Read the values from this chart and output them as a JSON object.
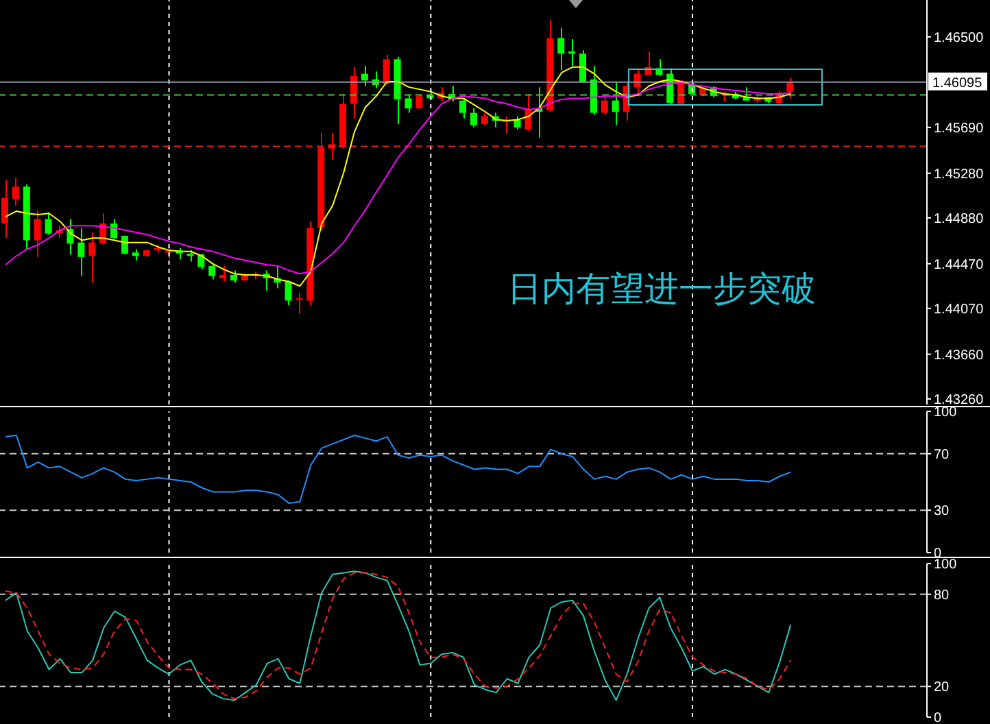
{
  "chart_data": [
    {
      "type": "candlestick",
      "categories": [
        null,
        null,
        null,
        null,
        null,
        null,
        null,
        null,
        null,
        null,
        null,
        null,
        null,
        null,
        null,
        null,
        null,
        null,
        null,
        null,
        null,
        null,
        null,
        null,
        null,
        null,
        null,
        null,
        null,
        null,
        null,
        null,
        null,
        null,
        null,
        null,
        null,
        null,
        null,
        null,
        null,
        null,
        null,
        null,
        null,
        null,
        null,
        null,
        null,
        null,
        null,
        null,
        null,
        null,
        null,
        null,
        null,
        null,
        null,
        null,
        null,
        null,
        null,
        null,
        null,
        null,
        null,
        null,
        null,
        null,
        null,
        null,
        null
      ],
      "ohlc": [
        [
          1.4483,
          1.4522,
          1.447,
          1.4506
        ],
        [
          1.4505,
          1.4524,
          1.4499,
          1.4516
        ],
        [
          1.4516,
          1.4518,
          1.446,
          1.4468
        ],
        [
          1.4468,
          1.4495,
          1.4453,
          1.4487
        ],
        [
          1.4487,
          1.4493,
          1.4473,
          1.4474
        ],
        [
          1.4474,
          1.4481,
          1.447,
          1.4477
        ],
        [
          1.4478,
          1.4487,
          1.4455,
          1.4465
        ],
        [
          1.4466,
          1.4479,
          1.4436,
          1.4453
        ],
        [
          1.4454,
          1.4475,
          1.443,
          1.4466
        ],
        [
          1.4465,
          1.4492,
          1.4464,
          1.4483
        ],
        [
          1.4483,
          1.4487,
          1.4469,
          1.447
        ],
        [
          1.4472,
          1.4472,
          1.4455,
          1.4456
        ],
        [
          1.4457,
          1.446,
          1.445,
          1.4454
        ],
        [
          1.4454,
          1.446,
          1.4453,
          1.4459
        ],
        [
          1.4459,
          1.4464,
          1.4457,
          1.4461
        ],
        [
          1.4457,
          1.4462,
          1.4451,
          1.4459
        ],
        [
          1.4459,
          1.4461,
          1.4451,
          1.4456
        ],
        [
          1.4456,
          1.4459,
          1.4449,
          1.4454
        ],
        [
          1.4455,
          1.4456,
          1.4442,
          1.4444
        ],
        [
          1.4445,
          1.4447,
          1.4433,
          1.4436
        ],
        [
          1.4434,
          1.4445,
          1.4431,
          1.4437
        ],
        [
          1.4437,
          1.4441,
          1.443,
          1.4432
        ],
        [
          1.4432,
          1.4438,
          1.4432,
          1.4437
        ],
        [
          1.4436,
          1.444,
          1.4433,
          1.4438
        ],
        [
          1.4438,
          1.4441,
          1.4423,
          1.4434
        ],
        [
          1.4434,
          1.4445,
          1.4425,
          1.443
        ],
        [
          1.4431,
          1.4432,
          1.441,
          1.4414
        ],
        [
          1.4415,
          1.4421,
          1.4402,
          1.4416
        ],
        [
          1.4414,
          1.4485,
          1.441,
          1.4479
        ],
        [
          1.4479,
          1.4564,
          1.4477,
          1.4551
        ],
        [
          1.455,
          1.4564,
          1.454,
          1.4554
        ],
        [
          1.4551,
          1.4599,
          1.455,
          1.459
        ],
        [
          1.459,
          1.4623,
          1.4577,
          1.4615
        ],
        [
          1.4617,
          1.4624,
          1.4606,
          1.4611
        ],
        [
          1.4612,
          1.4619,
          1.4604,
          1.4607
        ],
        [
          1.4608,
          1.4634,
          1.4607,
          1.463
        ],
        [
          1.463,
          1.4632,
          1.4572,
          1.4594
        ],
        [
          1.4595,
          1.4598,
          1.4582,
          1.4586
        ],
        [
          1.4586,
          1.4598,
          1.4586,
          1.4597
        ],
        [
          1.4598,
          1.4602,
          1.4594,
          1.4595
        ],
        [
          1.4595,
          1.4605,
          1.4593,
          1.46
        ],
        [
          1.4599,
          1.4606,
          1.4592,
          1.4594
        ],
        [
          1.4593,
          1.4595,
          1.4577,
          1.4582
        ],
        [
          1.4582,
          1.4586,
          1.4569,
          1.4571
        ],
        [
          1.4572,
          1.4582,
          1.4571,
          1.4579
        ],
        [
          1.4579,
          1.4582,
          1.4569,
          1.4575
        ],
        [
          1.4574,
          1.4579,
          1.4564,
          1.4576
        ],
        [
          1.4576,
          1.4579,
          1.4567,
          1.4569
        ],
        [
          1.4567,
          1.4599,
          1.4566,
          1.4585
        ],
        [
          1.4586,
          1.4605,
          1.456,
          1.4583
        ],
        [
          1.4584,
          1.4665,
          1.4583,
          1.4649
        ],
        [
          1.4649,
          1.4658,
          1.462,
          1.4635
        ],
        [
          1.4637,
          1.4648,
          1.4624,
          1.4635
        ],
        [
          1.4635,
          1.4638,
          1.461,
          1.461
        ],
        [
          1.4612,
          1.4624,
          1.458,
          1.4582
        ],
        [
          1.4582,
          1.4599,
          1.458,
          1.4593
        ],
        [
          1.4593,
          1.461,
          1.4571,
          1.4583
        ],
        [
          1.4583,
          1.461,
          1.4575,
          1.4606
        ],
        [
          1.4605,
          1.4622,
          1.4597,
          1.4617
        ],
        [
          1.4616,
          1.4637,
          1.4616,
          1.4623
        ],
        [
          1.4622,
          1.463,
          1.4615,
          1.4616
        ],
        [
          1.4617,
          1.4622,
          1.459,
          1.4591
        ],
        [
          1.459,
          1.4611,
          1.459,
          1.461
        ],
        [
          1.4608,
          1.4609,
          1.4598,
          1.4599
        ],
        [
          1.4598,
          1.4605,
          1.4597,
          1.4604
        ],
        [
          1.4605,
          1.4606,
          1.4596,
          1.4597
        ],
        [
          1.4598,
          1.4601,
          1.4592,
          1.4599
        ],
        [
          1.4599,
          1.4601,
          1.4594,
          1.4595
        ],
        [
          1.4596,
          1.4605,
          1.4593,
          1.4593
        ],
        [
          1.4593,
          1.4597,
          1.4591,
          1.4596
        ],
        [
          1.4596,
          1.4596,
          1.4591,
          1.4592
        ],
        [
          1.4591,
          1.4602,
          1.4589,
          1.46
        ],
        [
          1.4601,
          1.4613,
          1.4595,
          1.461
        ]
      ],
      "colors": [
        "#ff0000",
        "#ff0000",
        "#00ff00",
        "#ff0000",
        "#00ff00",
        "#ff0000",
        "#00ff00",
        "#00ff00",
        "#ff0000",
        "#ff0000",
        "#00ff00",
        "#00ff00",
        "#00ff00",
        "#ff0000",
        "#ff0000",
        "#ff0000",
        "#00ff00",
        "#00ff00",
        "#00ff00",
        "#00ff00",
        "#ff0000",
        "#00ff00",
        "#ff0000",
        "#ff0000",
        "#00ff00",
        "#00ff00",
        "#00ff00",
        "#ff0000",
        "#ff0000",
        "#ff0000",
        "#ff0000",
        "#ff0000",
        "#ff0000",
        "#00ff00",
        "#00ff00",
        "#ff0000",
        "#00ff00",
        "#00ff00",
        "#ff0000",
        "#00ff00",
        "#ff0000",
        "#00ff00",
        "#00ff00",
        "#00ff00",
        "#ff0000",
        "#00ff00",
        "#ff0000",
        "#00ff00",
        "#ff0000",
        "#00ff00",
        "#ff0000",
        "#00ff00",
        "#00ff00",
        "#00ff00",
        "#00ff00",
        "#ff0000",
        "#00ff00",
        "#ff0000",
        "#ff0000",
        "#ff0000",
        "#00ff00",
        "#00ff00",
        "#ff0000",
        "#00ff00",
        "#ff0000",
        "#00ff00",
        "#ff0000",
        "#00ff00",
        "#00ff00",
        "#ff0000",
        "#00ff00",
        "#ff0000",
        "#ff0000"
      ],
      "series": [
        {
          "type": "line",
          "color": "#ffff00",
          "values": [
            1.4489,
            1.4494,
            1.4492,
            1.4491,
            1.4492,
            1.4485,
            1.4474,
            1.4468,
            1.447,
            1.447,
            1.4468,
            1.4466,
            1.4466,
            1.4466,
            1.4462,
            1.4459,
            1.4458,
            1.4458,
            1.4454,
            1.4447,
            1.4442,
            1.4438,
            1.4437,
            1.4437,
            1.4436,
            1.4433,
            1.4431,
            1.4427,
            1.444,
            1.4483,
            1.4499,
            1.4528,
            1.4565,
            1.4587,
            1.4597,
            1.461,
            1.461,
            1.4605,
            1.4603,
            1.4601,
            1.4597,
            1.4595,
            1.4595,
            1.4589,
            1.4583,
            1.4576,
            1.4575,
            1.4576,
            1.4579,
            1.4587,
            1.4603,
            1.4618,
            1.4623,
            1.4623,
            1.4617,
            1.4607,
            1.4601,
            1.4596,
            1.4598,
            1.4606,
            1.461,
            1.4612,
            1.461,
            1.4607,
            1.4604,
            1.4601,
            1.4599,
            1.4598,
            1.4596,
            1.4595,
            1.4595,
            1.4596,
            1.4599
          ]
        },
        {
          "type": "line",
          "color": "#ff00ff",
          "values": [
            1.4446,
            1.4454,
            1.446,
            1.4464,
            1.447,
            1.4477,
            1.4481,
            1.4481,
            1.4481,
            1.448,
            1.4479,
            1.4477,
            1.4475,
            1.4473,
            1.447,
            1.4467,
            1.4465,
            1.4462,
            1.446,
            1.4458,
            1.4455,
            1.4452,
            1.445,
            1.4448,
            1.4446,
            1.4445,
            1.4441,
            1.4438,
            1.444,
            1.4448,
            1.4456,
            1.4466,
            1.4481,
            1.4495,
            1.4511,
            1.4526,
            1.4542,
            1.4554,
            1.4567,
            1.4579,
            1.459,
            1.4595,
            1.4597,
            1.4596,
            1.4595,
            1.4592,
            1.459,
            1.4587,
            1.4585,
            1.4586,
            1.4591,
            1.4594,
            1.4595,
            1.4595,
            1.4596,
            1.4597,
            1.4597,
            1.4597,
            1.4599,
            1.4603,
            1.4606,
            1.4608,
            1.4609,
            1.4607,
            1.4606,
            1.4604,
            1.4603,
            1.4602,
            1.4601,
            1.46,
            1.4599,
            1.4599,
            1.46
          ]
        }
      ],
      "ylim": [
        1.4321,
        1.4683
      ],
      "yticks": [
        {
          "value": 1.465,
          "label": "1.46500"
        },
        {
          "value": 1.4569,
          "label": "1.45690"
        },
        {
          "value": 1.4528,
          "label": "1.45280"
        },
        {
          "value": 1.4488,
          "label": "1.44880"
        },
        {
          "value": 1.4447,
          "label": "1.44470"
        },
        {
          "value": 1.4407,
          "label": "1.44070"
        },
        {
          "value": 1.4366,
          "label": "1.43660"
        },
        {
          "value": 1.4326,
          "label": "1.43260"
        }
      ],
      "ref_lines": [
        {
          "axis": "y",
          "value": 1.46095,
          "label": "1.46095",
          "color": "#8a94a6",
          "line_style": "solid"
        },
        {
          "axis": "y",
          "value": 1.4598,
          "color": "#3cc83c",
          "line_style": "dashed"
        },
        {
          "axis": "y",
          "value": 1.4552,
          "color": "#e02020",
          "line_style": "dashed"
        }
      ],
      "annotations": [
        "日内有望进一步突破"
      ],
      "grid": "x",
      "tick_labels": "y"
    },
    {
      "type": "line",
      "categories": [
        null,
        null,
        null,
        null,
        null,
        null,
        null,
        null,
        null,
        null,
        null,
        null,
        null,
        null,
        null,
        null,
        null,
        null,
        null,
        null,
        null,
        null,
        null,
        null,
        null,
        null,
        null,
        null,
        null,
        null,
        null,
        null,
        null,
        null,
        null,
        null,
        null,
        null,
        null,
        null,
        null,
        null,
        null,
        null,
        null,
        null,
        null,
        null,
        null,
        null,
        null,
        null,
        null,
        null,
        null,
        null,
        null,
        null,
        null,
        null,
        null,
        null,
        null,
        null,
        null,
        null,
        null,
        null,
        null,
        null,
        null,
        null,
        null
      ],
      "series": [
        {
          "color": "#1e90ff",
          "values": [
            82,
            83,
            60,
            64,
            60,
            61,
            57,
            53,
            56,
            60,
            57,
            52,
            51,
            52,
            53,
            52,
            51,
            50,
            46,
            43,
            43,
            43,
            44,
            44,
            43,
            41,
            35,
            36,
            62,
            74,
            77,
            80,
            83,
            81,
            79,
            82,
            69,
            67,
            69,
            68,
            69,
            65,
            62,
            59,
            60,
            59,
            59,
            56,
            61,
            61,
            73,
            70,
            68,
            59,
            52,
            54,
            52,
            57,
            59,
            60,
            57,
            52,
            55,
            52,
            54,
            52,
            52,
            52,
            51,
            51,
            50,
            54,
            57
          ]
        }
      ],
      "ylim": [
        0,
        100
      ],
      "yticks": [
        0,
        30,
        70,
        100
      ],
      "ref_lines": [
        {
          "axis": "y",
          "value": 70,
          "color": "#c8c8c8",
          "line_style": "dashed"
        },
        {
          "axis": "y",
          "value": 30,
          "color": "#c8c8c8",
          "line_style": "dashed"
        }
      ],
      "grid": "x",
      "tick_labels": "y"
    },
    {
      "type": "line",
      "categories": [
        null,
        null,
        null,
        null,
        null,
        null,
        null,
        null,
        null,
        null,
        null,
        null,
        null,
        null,
        null,
        null,
        null,
        null,
        null,
        null,
        null,
        null,
        null,
        null,
        null,
        null,
        null,
        null,
        null,
        null,
        null,
        null,
        null,
        null,
        null,
        null,
        null,
        null,
        null,
        null,
        null,
        null,
        null,
        null,
        null,
        null,
        null,
        null,
        null,
        null,
        null,
        null,
        null,
        null,
        null,
        null,
        null,
        null,
        null,
        null,
        null,
        null,
        null,
        null,
        null,
        null,
        null,
        null,
        null,
        null,
        null,
        null,
        null
      ],
      "series": [
        {
          "color": "#28c8b4",
          "line_style": "solid",
          "values": [
            76,
            81,
            56,
            45,
            31,
            38,
            29,
            29,
            37,
            58,
            69,
            65,
            51,
            37,
            32,
            28,
            34,
            37,
            23,
            15,
            12,
            11,
            16,
            21,
            35,
            38,
            25,
            22,
            53,
            81,
            93,
            94,
            95,
            94,
            91,
            89,
            73,
            56,
            34,
            35,
            41,
            42,
            39,
            21,
            18,
            16,
            25,
            22,
            39,
            47,
            71,
            75,
            76,
            66,
            43,
            24,
            11,
            28,
            51,
            71,
            78,
            58,
            45,
            30,
            33,
            28,
            31,
            28,
            24,
            20,
            16,
            36,
            60
          ]
        },
        {
          "color": "#ff2020",
          "line_style": "dashed",
          "values": [
            82,
            81,
            71,
            56,
            41,
            35,
            32,
            31,
            32,
            41,
            56,
            64,
            63,
            49,
            40,
            32,
            31,
            31,
            28,
            22,
            15,
            12,
            13,
            17,
            26,
            32,
            32,
            28,
            32,
            55,
            77,
            90,
            94,
            94,
            93,
            91,
            85,
            68,
            49,
            39,
            39,
            41,
            38,
            28,
            20,
            19,
            20,
            25,
            32,
            40,
            53,
            66,
            74,
            74,
            62,
            45,
            28,
            23,
            36,
            56,
            70,
            68,
            53,
            39,
            34,
            30,
            29,
            28,
            25,
            20,
            18,
            25,
            37
          ]
        }
      ],
      "ylim": [
        0,
        100
      ],
      "yticks": [
        0,
        20,
        80,
        100
      ],
      "ref_lines": [
        {
          "axis": "y",
          "value": 80,
          "color": "#c8c8c8",
          "line_style": "dashed"
        },
        {
          "axis": "y",
          "value": 20,
          "color": "#c8c8c8",
          "line_style": "dashed"
        }
      ],
      "grid": "x",
      "tick_labels": "y"
    }
  ]
}
